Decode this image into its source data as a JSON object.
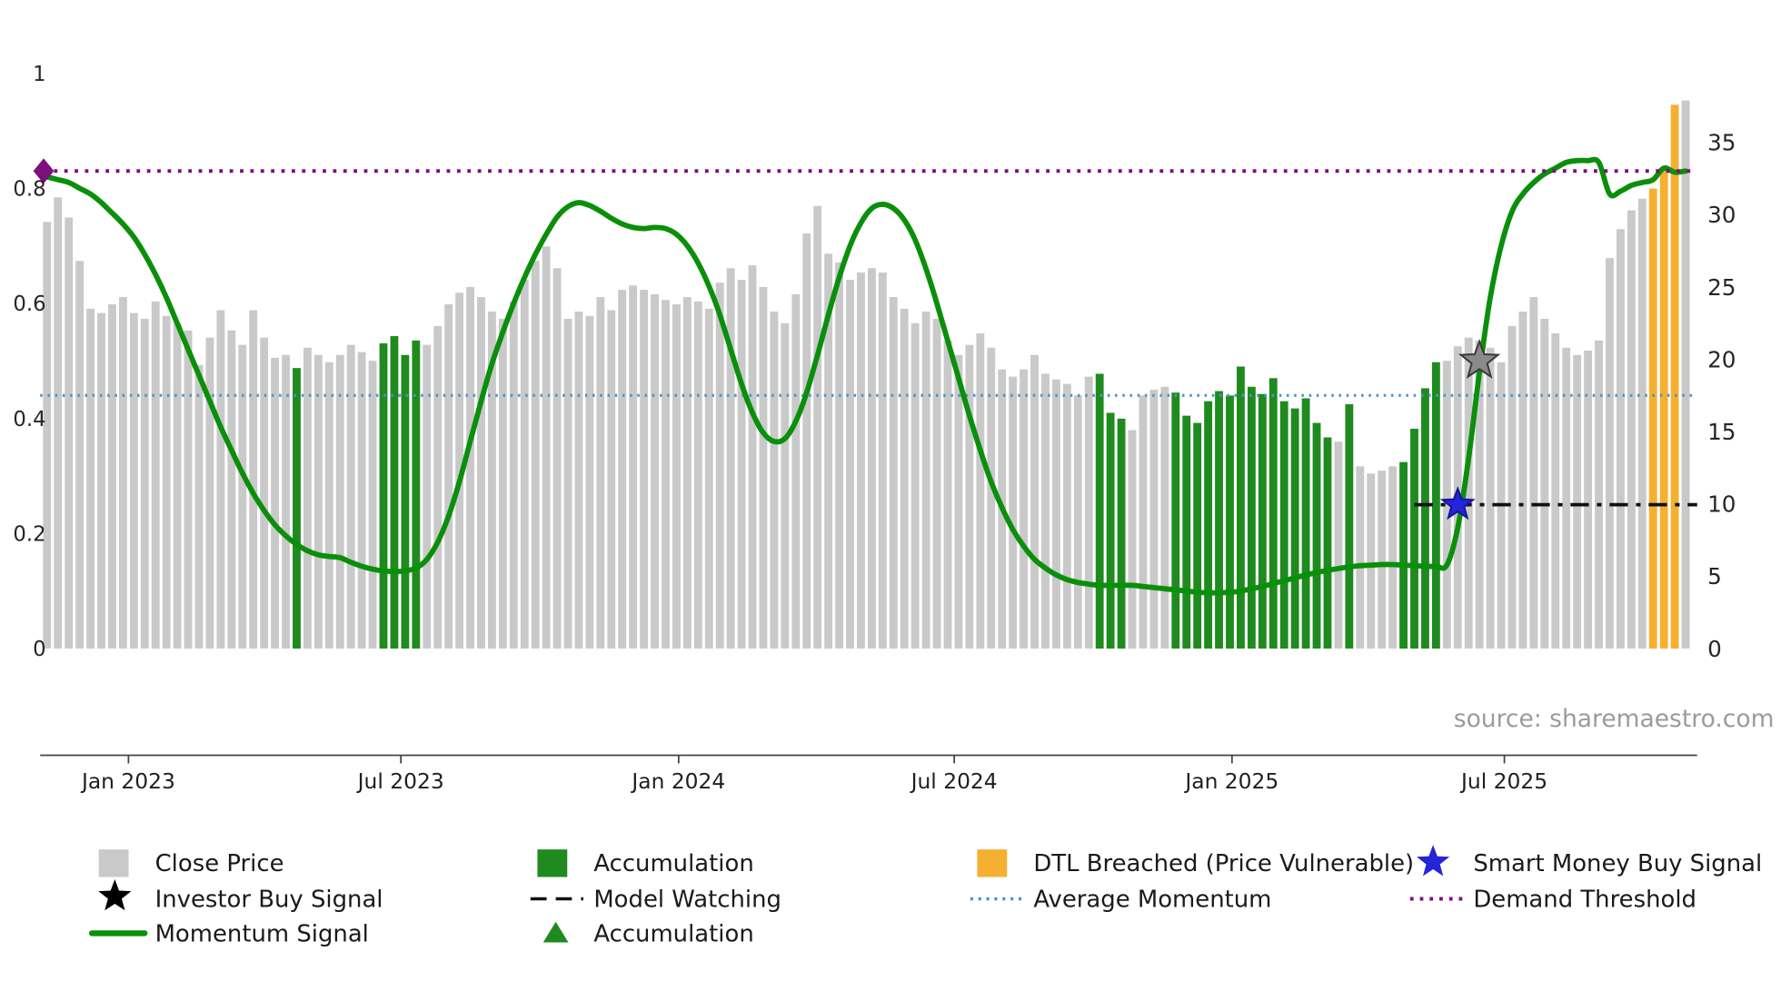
{
  "source": "source: sharemaestro.com",
  "legend": {
    "close_price": "Close Price",
    "investor_buy_signal": "Investor Buy Signal",
    "momentum_signal": "Momentum Signal",
    "accumulation_bar": "Accumulation",
    "model_watching": "Model Watching",
    "accumulation_marker": "Accumulation",
    "dtl_breached": "DTL Breached (Price Vulnerable)",
    "average_momentum": "Average Momentum",
    "smart_money_buy_signal": "Smart Money Buy Signal",
    "demand_threshold": "Demand Threshold"
  },
  "colors": {
    "close_price": "#c9c9c9",
    "accumulation": "#1f8b1f",
    "dtl_breached": "#f5b031",
    "momentum": "#0a8f0a",
    "average_momentum": "#4f93c8",
    "demand_threshold": "#7d0e7d",
    "model_watching": "#111111",
    "smart_money_star": "#2424d8",
    "smart_money_star_edge": "#15159e",
    "investor_star": "#8a8a8a",
    "investor_star_edge": "#3a3a3a",
    "marker_black": "#000000",
    "axis": "#444444"
  },
  "chart_data": {
    "type": "bar+line",
    "title": "",
    "xlabel": "",
    "ylabel_left": "",
    "ylabel_right": "",
    "grid": false,
    "left_axis": {
      "ticks": [
        0,
        0.2,
        0.4,
        0.6,
        0.8,
        1
      ],
      "range": [
        0,
        1
      ]
    },
    "right_axis": {
      "ticks": [
        0,
        5,
        10,
        15,
        20,
        25,
        30,
        35
      ],
      "range": [
        0,
        38.5
      ]
    },
    "x_ticks": [
      {
        "label": "Jan 2023",
        "i": 7.5
      },
      {
        "label": "Jul 2023",
        "i": 32.6
      },
      {
        "label": "Jan 2024",
        "i": 58.2
      },
      {
        "label": "Jul 2024",
        "i": 83.6
      },
      {
        "label": "Jan 2025",
        "i": 109.2
      },
      {
        "label": "Jul 2025",
        "i": 134.3
      }
    ],
    "close": [
      29.5,
      31.2,
      29.8,
      26.8,
      23.5,
      23.2,
      23.8,
      24.3,
      23.2,
      22.8,
      24.0,
      23.0,
      22.5,
      22.0,
      19.6,
      21.5,
      23.4,
      22.0,
      21.0,
      23.4,
      21.5,
      20.1,
      20.3,
      19.4,
      20.8,
      20.3,
      19.8,
      20.3,
      21.0,
      20.5,
      19.9,
      21.1,
      21.6,
      20.3,
      21.3,
      21.0,
      22.3,
      23.8,
      24.6,
      25.0,
      24.3,
      23.3,
      22.8,
      24.0,
      25.5,
      26.8,
      27.8,
      26.3,
      22.8,
      23.3,
      23.0,
      24.3,
      23.4,
      24.8,
      25.1,
      24.8,
      24.5,
      24.1,
      23.8,
      24.3,
      24.0,
      23.5,
      25.3,
      26.3,
      25.5,
      26.5,
      25.0,
      23.3,
      22.5,
      24.5,
      28.7,
      30.6,
      27.3,
      26.7,
      25.5,
      26.0,
      26.3,
      26.0,
      24.3,
      23.5,
      22.5,
      23.3,
      22.8,
      21.3,
      20.3,
      21.0,
      21.8,
      20.8,
      19.3,
      18.8,
      19.3,
      20.3,
      19.0,
      18.6,
      18.3,
      17.5,
      18.8,
      19.0,
      16.3,
      15.9,
      15.1,
      17.5,
      17.9,
      18.1,
      17.7,
      16.1,
      15.6,
      17.1,
      17.8,
      17.5,
      19.5,
      18.1,
      17.6,
      18.7,
      17.1,
      16.6,
      17.3,
      15.6,
      14.6,
      14.3,
      16.9,
      12.6,
      12.1,
      12.3,
      12.6,
      12.9,
      15.2,
      18.0,
      19.8,
      19.9,
      20.9,
      21.5,
      21.3,
      20.8,
      19.8,
      22.3,
      23.3,
      24.3,
      22.8,
      21.8,
      20.8,
      20.3,
      20.6,
      21.3,
      27.0,
      29.0,
      30.3,
      31.1,
      31.8,
      33.2,
      37.6,
      37.9
    ],
    "bar_type": "pppppppppppppppppppppppapppppppaaaappppppppppppppppppppppppppppppppppppppppppppppppppppppppppppppaaappppaaaaaaaaaaaaaaapappppaaaapppppppppppppppppppddd",
    "momentum": [
      0.82,
      0.815,
      0.81,
      0.8,
      0.79,
      0.775,
      0.757,
      0.738,
      0.715,
      0.685,
      0.65,
      0.61,
      0.565,
      0.52,
      0.475,
      0.43,
      0.385,
      0.345,
      0.305,
      0.27,
      0.24,
      0.215,
      0.196,
      0.181,
      0.17,
      0.163,
      0.16,
      0.158,
      0.15,
      0.143,
      0.138,
      0.135,
      0.134,
      0.135,
      0.14,
      0.155,
      0.185,
      0.23,
      0.29,
      0.36,
      0.43,
      0.495,
      0.55,
      0.6,
      0.645,
      0.685,
      0.72,
      0.75,
      0.768,
      0.775,
      0.77,
      0.76,
      0.748,
      0.738,
      0.732,
      0.73,
      0.732,
      0.73,
      0.72,
      0.7,
      0.67,
      0.63,
      0.58,
      0.52,
      0.46,
      0.41,
      0.375,
      0.36,
      0.365,
      0.395,
      0.445,
      0.51,
      0.58,
      0.645,
      0.7,
      0.74,
      0.765,
      0.772,
      0.765,
      0.745,
      0.71,
      0.66,
      0.6,
      0.535,
      0.47,
      0.405,
      0.345,
      0.29,
      0.245,
      0.207,
      0.178,
      0.155,
      0.14,
      0.128,
      0.12,
      0.115,
      0.112,
      0.11,
      0.11,
      0.11,
      0.11,
      0.108,
      0.106,
      0.104,
      0.102,
      0.1,
      0.098,
      0.097,
      0.097,
      0.098,
      0.1,
      0.104,
      0.108,
      0.113,
      0.118,
      0.123,
      0.128,
      0.132,
      0.136,
      0.139,
      0.142,
      0.144,
      0.145,
      0.146,
      0.146,
      0.145,
      0.144,
      0.143,
      0.143,
      0.145,
      0.21,
      0.33,
      0.48,
      0.61,
      0.7,
      0.76,
      0.79,
      0.81,
      0.825,
      0.835,
      0.845,
      0.848,
      0.848,
      0.845,
      0.79,
      0.795,
      0.805,
      0.81,
      0.815,
      0.835,
      0.828,
      0.83
    ],
    "average_momentum_level": 0.44,
    "demand_threshold_level": 0.83,
    "model_watching": {
      "level": 0.25,
      "start_i": 126
    },
    "stars": [
      {
        "name": "smart_money",
        "i": 130,
        "v": 0.25
      },
      {
        "name": "investor",
        "i": 132,
        "v": 0.5
      }
    ],
    "triangles": {
      "green": [
        23,
        31,
        32,
        33,
        34,
        97,
        98,
        99,
        100,
        105,
        106,
        107,
        108,
        121,
        126,
        127,
        128
      ],
      "black": [
        109,
        110,
        111,
        112,
        113,
        114,
        115,
        116,
        117,
        118
      ]
    }
  }
}
